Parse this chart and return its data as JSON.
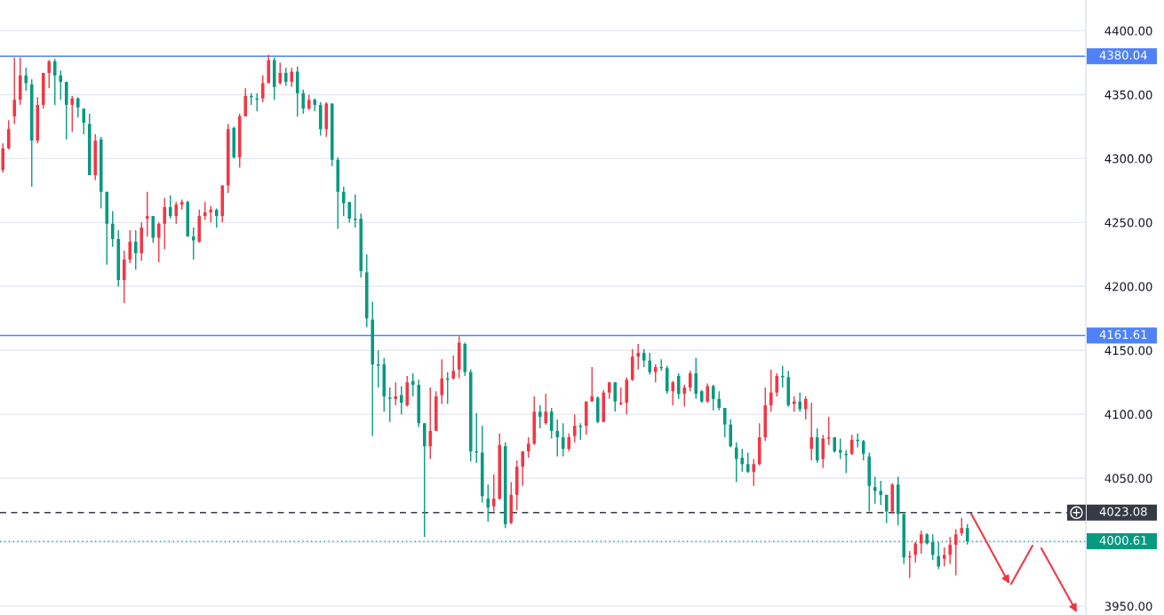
{
  "chart_data": {
    "type": "candlestick",
    "categories": [
      null,
      null,
      null,
      null,
      null,
      null,
      null,
      null,
      null,
      null,
      null,
      null,
      null,
      null,
      null,
      null,
      null,
      null,
      null,
      null,
      null,
      null,
      null,
      null,
      null,
      null,
      null,
      null,
      null,
      null,
      null,
      null,
      null,
      null,
      null,
      null,
      null,
      null,
      null,
      null,
      null,
      null,
      null,
      null,
      null,
      null,
      null,
      null,
      null,
      null,
      null,
      null,
      null,
      null,
      null,
      null,
      null,
      null,
      null,
      null,
      null,
      null,
      null,
      null,
      null,
      null,
      null,
      null,
      null,
      null,
      null,
      null,
      null,
      null,
      null,
      null,
      null,
      null,
      null,
      null,
      null,
      null,
      null,
      null,
      null,
      null,
      null,
      null,
      null,
      null,
      null,
      null,
      null,
      null,
      null,
      null,
      null,
      null,
      null,
      null,
      null,
      null,
      null,
      null,
      null,
      null,
      null,
      null,
      null,
      null,
      null,
      null,
      null,
      null,
      null,
      null,
      null,
      null,
      null,
      null,
      null,
      null,
      null,
      null,
      null,
      null,
      null,
      null,
      null,
      null,
      null,
      null,
      null,
      null,
      null,
      null,
      null,
      null,
      null,
      null,
      null,
      null,
      null,
      null,
      null,
      null,
      null,
      null,
      null,
      null,
      null,
      null,
      null,
      null,
      null,
      null,
      null,
      null,
      null,
      null,
      null,
      null,
      null,
      null,
      null,
      null,
      null,
      null,
      null,
      null,
      null,
      null,
      null,
      null,
      null,
      null,
      null,
      null,
      null,
      null,
      null,
      null,
      null,
      null,
      null,
      null,
      null,
      null
    ],
    "ohlc": [
      [
        4291,
        4312,
        4289,
        4308
      ],
      [
        4308,
        4330,
        4307,
        4323
      ],
      [
        4333,
        4379,
        4327,
        4346
      ],
      [
        4346,
        4379,
        4342,
        4365
      ],
      [
        4365,
        4371,
        4353,
        4359
      ],
      [
        4358,
        4362,
        4278,
        4314
      ],
      [
        4314,
        4348,
        4312,
        4342
      ],
      [
        4342,
        4367,
        4339,
        4367
      ],
      [
        4367,
        4377,
        4355,
        4376
      ],
      [
        4376,
        4378,
        4342,
        4365
      ],
      [
        4365,
        4369,
        4346,
        4360
      ],
      [
        4360,
        4360,
        4315,
        4342
      ],
      [
        4342,
        4349,
        4321,
        4347
      ],
      [
        4347,
        4348,
        4332,
        4340
      ],
      [
        4339,
        4339,
        4319,
        4328
      ],
      [
        4327,
        4335,
        4287,
        4287
      ],
      [
        4287,
        4319,
        4283,
        4314
      ],
      [
        4315,
        4317,
        4261,
        4274
      ],
      [
        4274,
        4274,
        4217,
        4249
      ],
      [
        4249,
        4259,
        4231,
        4237
      ],
      [
        4237,
        4244,
        4200,
        4205
      ],
      [
        4205,
        4228,
        4187,
        4221
      ],
      [
        4221,
        4244,
        4218,
        4235
      ],
      [
        4235,
        4244,
        4213,
        4226
      ],
      [
        4226,
        4250,
        4220,
        4246
      ],
      [
        4253,
        4274,
        4239,
        4255
      ],
      [
        4255,
        4255,
        4234,
        4238
      ],
      [
        4238,
        4250,
        4219,
        4249
      ],
      [
        4249,
        4269,
        4229,
        4262
      ],
      [
        4262,
        4271,
        4253,
        4255
      ],
      [
        4255,
        4266,
        4249,
        4264
      ],
      [
        4264,
        4268,
        4260,
        4266
      ],
      [
        4266,
        4267,
        4239,
        4239
      ],
      [
        4239,
        4246,
        4221,
        4236
      ],
      [
        4235,
        4260,
        4234,
        4255
      ],
      [
        4255,
        4266,
        4252,
        4258
      ],
      [
        4258,
        4263,
        4250,
        4260
      ],
      [
        4260,
        4261,
        4246,
        4255
      ],
      [
        4255,
        4279,
        4250,
        4279
      ],
      [
        4279,
        4327,
        4273,
        4323
      ],
      [
        4324,
        4325,
        4300,
        4301
      ],
      [
        4301,
        4335,
        4293,
        4333
      ],
      [
        4333,
        4355,
        4333,
        4349
      ],
      [
        4349,
        4351,
        4342,
        4348
      ],
      [
        4347,
        4351,
        4337,
        4346
      ],
      [
        4347,
        4365,
        4344,
        4359
      ],
      [
        4359,
        4381,
        4359,
        4377
      ],
      [
        4377,
        4379,
        4346,
        4356
      ],
      [
        4359,
        4375,
        4358,
        4367
      ],
      [
        4367,
        4371,
        4357,
        4360
      ],
      [
        4360,
        4371,
        4356,
        4368
      ],
      [
        4368,
        4372,
        4333,
        4351
      ],
      [
        4351,
        4354,
        4335,
        4339
      ],
      [
        4339,
        4350,
        4338,
        4346
      ],
      [
        4346,
        4347,
        4337,
        4342
      ],
      [
        4342,
        4344,
        4318,
        4323
      ],
      [
        4323,
        4344,
        4317,
        4343
      ],
      [
        4343,
        4343,
        4294,
        4299
      ],
      [
        4299,
        4301,
        4245,
        4274
      ],
      [
        4274,
        4278,
        4255,
        4265
      ],
      [
        4266,
        4266,
        4250,
        4253
      ],
      [
        4253,
        4272,
        4246,
        4252
      ],
      [
        4253,
        4257,
        4207,
        4212
      ],
      [
        4211,
        4225,
        4168,
        4175
      ],
      [
        4174,
        4188,
        4083,
        4139
      ],
      [
        4139,
        4150,
        4121,
        4138
      ],
      [
        4139,
        4144,
        4102,
        4114
      ],
      [
        4113,
        4121,
        4094,
        4112
      ],
      [
        4112,
        4125,
        4107,
        4114
      ],
      [
        4115,
        4122,
        4100,
        4109
      ],
      [
        4107,
        4130,
        4106,
        4125
      ],
      [
        4126,
        4132,
        4114,
        4123
      ],
      [
        4123,
        4127,
        4090,
        4093
      ],
      [
        4093,
        4093,
        4004,
        4075
      ],
      [
        4075,
        4121,
        4065,
        4087
      ],
      [
        4087,
        4118,
        4087,
        4114
      ],
      [
        4115,
        4143,
        4108,
        4128
      ],
      [
        4128,
        4133,
        4108,
        4127
      ],
      [
        4128,
        4146,
        4127,
        4134
      ],
      [
        4135,
        4161,
        4128,
        4156
      ],
      [
        4155,
        4156,
        4130,
        4133
      ],
      [
        4133,
        4135,
        4063,
        4071
      ],
      [
        4071,
        4101,
        4062,
        4070
      ],
      [
        4070,
        4091,
        4031,
        4036
      ],
      [
        4034,
        4045,
        4016,
        4027
      ],
      [
        4028,
        4053,
        4024,
        4034
      ],
      [
        4034,
        4085,
        4033,
        4076
      ],
      [
        4075,
        4078,
        4011,
        4014
      ],
      [
        4015,
        4047,
        4014,
        4037
      ],
      [
        4037,
        4064,
        4025,
        4059
      ],
      [
        4059,
        4071,
        4044,
        4071
      ],
      [
        4071,
        4082,
        4066,
        4077
      ],
      [
        4077,
        4114,
        4076,
        4102
      ],
      [
        4102,
        4107,
        4089,
        4098
      ],
      [
        4093,
        4116,
        4092,
        4102
      ],
      [
        4102,
        4105,
        4081,
        4087
      ],
      [
        4087,
        4096,
        4067,
        4082
      ],
      [
        4082,
        4093,
        4067,
        4073
      ],
      [
        4073,
        4085,
        4071,
        4082
      ],
      [
        4083,
        4100,
        4078,
        4091
      ],
      [
        4091,
        4093,
        4080,
        4090
      ],
      [
        4091,
        4110,
        4084,
        4110
      ],
      [
        4110,
        4137,
        4110,
        4114
      ],
      [
        4113,
        4114,
        4093,
        4094
      ],
      [
        4094,
        4119,
        4094,
        4117
      ],
      [
        4117,
        4125,
        4112,
        4125
      ],
      [
        4125,
        4125,
        4102,
        4110
      ],
      [
        4108,
        4121,
        4107,
        4109
      ],
      [
        4109,
        4129,
        4100,
        4127
      ],
      [
        4127,
        4151,
        4126,
        4145
      ],
      [
        4145,
        4155,
        4135,
        4148
      ],
      [
        4148,
        4151,
        4137,
        4142
      ],
      [
        4142,
        4148,
        4131,
        4133
      ],
      [
        4133,
        4139,
        4125,
        4137
      ],
      [
        4137,
        4143,
        4134,
        4136
      ],
      [
        4136,
        4138,
        4116,
        4118
      ],
      [
        4118,
        4126,
        4107,
        4125
      ],
      [
        4130,
        4132,
        4112,
        4116
      ],
      [
        4116,
        4123,
        4106,
        4121
      ],
      [
        4121,
        4134,
        4118,
        4132
      ],
      [
        4132,
        4144,
        4112,
        4116
      ],
      [
        4118,
        4119,
        4109,
        4110
      ],
      [
        4110,
        4124,
        4109,
        4122
      ],
      [
        4122,
        4123,
        4103,
        4112
      ],
      [
        4112,
        4118,
        4103,
        4105
      ],
      [
        4105,
        4105,
        4082,
        4092
      ],
      [
        4092,
        4096,
        4074,
        4075
      ],
      [
        4074,
        4078,
        4047,
        4065
      ],
      [
        4066,
        4073,
        4055,
        4061
      ],
      [
        4061,
        4070,
        4054,
        4055
      ],
      [
        4055,
        4065,
        4044,
        4061
      ],
      [
        4061,
        4093,
        4060,
        4082
      ],
      [
        4082,
        4121,
        4079,
        4107
      ],
      [
        4107,
        4135,
        4102,
        4117
      ],
      [
        4117,
        4132,
        4114,
        4130
      ],
      [
        4130,
        4138,
        4121,
        4129
      ],
      [
        4129,
        4134,
        4106,
        4107
      ],
      [
        4108,
        4114,
        4102,
        4110
      ],
      [
        4110,
        4117,
        4102,
        4104
      ],
      [
        4104,
        4114,
        4096,
        4112
      ],
      [
        4073,
        4109,
        4064,
        4082
      ],
      [
        4082,
        4089,
        4062,
        4064
      ],
      [
        4065,
        4084,
        4058,
        4081
      ],
      [
        4081,
        4098,
        4076,
        4082
      ],
      [
        4082,
        4082,
        4070,
        4071
      ],
      [
        4072,
        4081,
        4065,
        4070
      ],
      [
        4069,
        4072,
        4054,
        4068
      ],
      [
        4069,
        4084,
        4068,
        4080
      ],
      [
        4080,
        4085,
        4074,
        4079
      ],
      [
        4079,
        4080,
        4064,
        4069
      ],
      [
        4067,
        4070,
        4024,
        4044
      ],
      [
        4043,
        4051,
        4030,
        4040
      ],
      [
        4040,
        4048,
        4029,
        4037
      ],
      [
        4037,
        4037,
        4015,
        4024
      ],
      [
        4024,
        4046,
        4022,
        4045
      ],
      [
        4045,
        4051,
        4013,
        4022
      ],
      [
        4022,
        4022,
        3983,
        3988
      ],
      [
        3988,
        3993,
        3972,
        3989
      ],
      [
        3990,
        4000,
        3984,
        3999
      ],
      [
        3999,
        4009,
        3991,
        4006
      ],
      [
        4006,
        4007,
        3998,
        3999
      ],
      [
        4000,
        4006,
        3986,
        3990
      ],
      [
        3989,
        4000,
        3979,
        3981
      ],
      [
        3987,
        3996,
        3981,
        3990
      ],
      [
        3990,
        4004,
        3983,
        3998
      ],
      [
        3998,
        4010,
        3974,
        4006
      ],
      [
        4007,
        4019,
        4005,
        4011
      ],
      [
        4011,
        4014,
        3998,
        4000.61
      ],
      null,
      null,
      null,
      null,
      null,
      null,
      null,
      null,
      null,
      null,
      null,
      null,
      null,
      null,
      null,
      null,
      null,
      null,
      null,
      null
    ],
    "colors": [
      "#f23645",
      "#f23645",
      "#f23645",
      "#f23645",
      "#089981",
      "#089981",
      "#f23645",
      "#f23645",
      "#f23645",
      "#089981",
      "#089981",
      "#089981",
      "#f23645",
      "#089981",
      "#089981",
      "#089981",
      "#f23645",
      "#089981",
      "#089981",
      "#089981",
      "#089981",
      "#f23645",
      "#f23645",
      "#089981",
      "#f23645",
      "#f23645",
      "#089981",
      "#f23645",
      "#f23645",
      "#089981",
      "#f23645",
      "#f23645",
      "#089981",
      "#089981",
      "#f23645",
      "#f23645",
      "#f23645",
      "#089981",
      "#f23645",
      "#f23645",
      "#089981",
      "#f23645",
      "#f23645",
      "#089981",
      "#089981",
      "#f23645",
      "#f23645",
      "#089981",
      "#f23645",
      "#089981",
      "#f23645",
      "#089981",
      "#089981",
      "#f23645",
      "#089981",
      "#089981",
      "#f23645",
      "#089981",
      "#089981",
      "#089981",
      "#089981",
      "#089981",
      "#089981",
      "#089981",
      "#089981",
      "#089981",
      "#089981",
      "#089981",
      "#f23645",
      "#089981",
      "#f23645",
      "#089981",
      "#089981",
      "#089981",
      "#f23645",
      "#f23645",
      "#f23645",
      "#089981",
      "#f23645",
      "#f23645",
      "#089981",
      "#089981",
      "#089981",
      "#089981",
      "#089981",
      "#f23645",
      "#f23645",
      "#089981",
      "#f23645",
      "#f23645",
      "#f23645",
      "#f23645",
      "#f23645",
      "#089981",
      "#f23645",
      "#089981",
      "#089981",
      "#089981",
      "#f23645",
      "#f23645",
      "#089981",
      "#f23645",
      "#f23645",
      "#089981",
      "#f23645",
      "#f23645",
      "#089981",
      "#f23645",
      "#f23645",
      "#f23645",
      "#f23645",
      "#089981",
      "#089981",
      "#f23645",
      "#089981",
      "#089981",
      "#f23645",
      "#089981",
      "#f23645",
      "#f23645",
      "#089981",
      "#089981",
      "#f23645",
      "#089981",
      "#089981",
      "#089981",
      "#089981",
      "#089981",
      "#089981",
      "#089981",
      "#f23645",
      "#f23645",
      "#f23645",
      "#f23645",
      "#f23645",
      "#089981",
      "#089981",
      "#f23645",
      "#089981",
      "#f23645",
      "#f23645",
      "#089981",
      "#f23645",
      "#f23645",
      "#089981",
      "#089981",
      "#089981",
      "#f23645",
      "#089981",
      "#089981",
      "#089981",
      "#089981",
      "#089981",
      "#089981",
      "#f23645",
      "#089981",
      "#089981",
      "#f23645",
      "#f23645",
      "#f23645",
      "#089981",
      "#089981",
      "#089981",
      "#f23645",
      "#f23645",
      "#f23645",
      "#f23645",
      "#089981",
      null,
      null,
      null,
      null,
      null,
      null,
      null,
      null,
      null,
      null,
      null,
      null,
      null,
      null,
      null,
      null,
      null,
      null,
      null,
      null
    ],
    "ylim": [
      3943,
      4424
    ],
    "yticks": [
      {
        "value": 3950,
        "label": "3950.00"
      },
      {
        "value": 4000,
        "label": null
      },
      {
        "value": 4050,
        "label": "4050.00"
      },
      {
        "value": 4100,
        "label": "4100.00"
      },
      {
        "value": 4150,
        "label": "4150.00"
      },
      {
        "value": 4200,
        "label": "4200.00"
      },
      {
        "value": 4250,
        "label": "4250.00"
      },
      {
        "value": 4300,
        "label": "4300.00"
      },
      {
        "value": 4350,
        "label": "4350.00"
      },
      {
        "value": 4400,
        "label": "4400.00"
      }
    ],
    "grid": "y",
    "tick_labels": "y",
    "ref_lines": [
      {
        "axis": "y",
        "value": 4380.04,
        "label": "4380.04",
        "color": "#4f82f7",
        "line_style": "solid"
      },
      {
        "axis": "y",
        "value": 4161.61,
        "label": "4161.61",
        "color": "#4f82f7",
        "line_style": "solid"
      },
      {
        "axis": "y",
        "value": 4023.08,
        "label": "4023.08",
        "color": "#363a45",
        "line_style": "dashed"
      },
      {
        "axis": "y",
        "value": 4000.61,
        "label": "4000.61",
        "color": "#089981",
        "line_style": "dotted"
      }
    ]
  }
}
